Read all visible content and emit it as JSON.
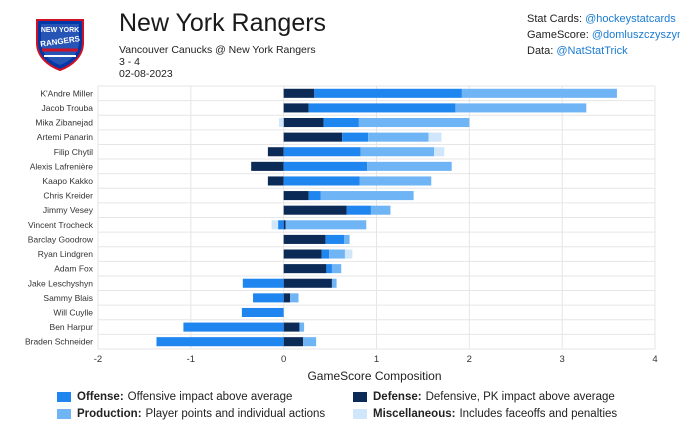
{
  "header": {
    "title": "New York Rangers",
    "matchup": "Vancouver Canucks @ New York Rangers",
    "score": "3 - 4",
    "date": "02-08-2023",
    "logo_text": "NEW YORK RANGERS"
  },
  "credits": [
    {
      "label": "Stat Cards:",
      "handle": "@hockeystatcards"
    },
    {
      "label": "GameScore:",
      "handle": "@domluszczyszyn"
    },
    {
      "label": "Data:",
      "handle": "@NatStatTrick"
    }
  ],
  "colors": {
    "offense": "#1f86f0",
    "defense": "#0b2a55",
    "production": "#6fb4f4",
    "misc": "#cfe6fb",
    "grid": "#e6e6e6",
    "credit_handle": "#1a7bd1"
  },
  "legend": [
    {
      "key": "offense",
      "name": "Offense:",
      "desc": "Offensive impact above average"
    },
    {
      "key": "defense",
      "name": "Defense:",
      "desc": "Defensive, PK impact above average"
    },
    {
      "key": "production",
      "name": "Production:",
      "desc": "Player points and individual actions"
    },
    {
      "key": "misc",
      "name": "Miscellaneous:",
      "desc": "Includes faceoffs and penalties"
    }
  ],
  "chart_data": {
    "type": "bar",
    "orientation": "horizontal",
    "stacked": true,
    "xlabel": "GameScore Composition",
    "xlim": [
      -2,
      4
    ],
    "xticks": [
      -2,
      -1,
      0,
      1,
      2,
      3,
      4
    ],
    "grid": true,
    "legend_position": "bottom",
    "categories": [
      "K'Andre Miller",
      "Jacob Trouba",
      "Mika Zibanejad",
      "Artemi Panarin",
      "Filip Chytil",
      "Alexis Lafrenière",
      "Kaapo Kakko",
      "Chris Kreider",
      "Jimmy Vesey",
      "Vincent Trocheck",
      "Barclay Goodrow",
      "Ryan Lindgren",
      "Adam Fox",
      "Jake Leschyshyn",
      "Sammy Blais",
      "Will Cuylle",
      "Ben Harpur",
      "Braden Schneider"
    ],
    "series": [
      {
        "name": "Defense",
        "key": "defense",
        "values": [
          0.33,
          0.27,
          0.43,
          0.63,
          -0.17,
          -0.35,
          -0.17,
          0.27,
          0.68,
          0.02,
          0.45,
          0.41,
          0.46,
          0.52,
          0.07,
          0.0,
          0.17,
          0.21
        ]
      },
      {
        "name": "Offense",
        "key": "offense",
        "values": [
          1.59,
          1.58,
          0.38,
          0.28,
          0.83,
          0.9,
          0.82,
          0.13,
          0.26,
          -0.06,
          0.2,
          0.08,
          0.06,
          -0.44,
          -0.33,
          -0.45,
          -1.08,
          -1.37
        ]
      },
      {
        "name": "Production",
        "key": "production",
        "values": [
          1.67,
          1.41,
          1.19,
          0.65,
          0.79,
          0.91,
          0.77,
          1.0,
          0.21,
          0.87,
          0.06,
          0.17,
          0.1,
          0.05,
          0.09,
          0.0,
          0.05,
          0.14
        ]
      },
      {
        "name": "Miscellaneous",
        "key": "misc",
        "values": [
          0.0,
          0.0,
          -0.05,
          0.14,
          0.11,
          0.0,
          0.0,
          0.0,
          0.0,
          -0.07,
          0.0,
          0.08,
          0.0,
          0.0,
          0.0,
          0.0,
          0.0,
          0.0
        ]
      }
    ]
  }
}
